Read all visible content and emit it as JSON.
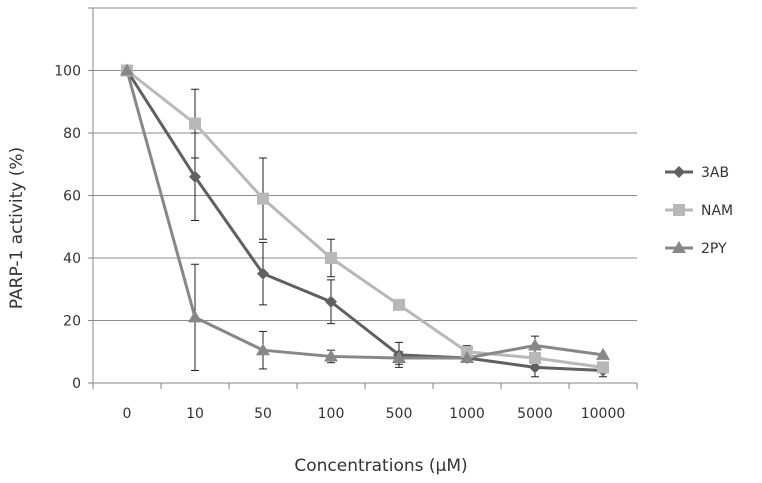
{
  "chart_data": {
    "type": "line",
    "xlabel": "Concentrations (µM)",
    "ylabel": "PARP-1 activity (%)",
    "categories": [
      "0",
      "10",
      "50",
      "100",
      "500",
      "1000",
      "5000",
      "10000"
    ],
    "ylim": [
      0,
      120
    ],
    "yticks": [
      "0",
      "20",
      "40",
      "60",
      "80",
      "100"
    ],
    "grid": "horizontal",
    "legend_position": "right",
    "series": [
      {
        "name": "3AB",
        "color": "#606060",
        "marker": "diamond",
        "values": [
          100,
          66,
          35,
          26,
          9,
          8,
          5,
          4
        ],
        "errors": [
          0,
          14,
          10,
          7,
          4,
          0,
          3,
          2
        ]
      },
      {
        "name": "NAM",
        "color": "#b8b8b8",
        "marker": "square",
        "values": [
          100,
          83,
          59,
          40,
          25,
          10,
          8,
          5
        ],
        "errors": [
          0,
          11,
          13,
          6,
          0,
          2,
          0,
          0
        ]
      },
      {
        "name": "2PY",
        "color": "#878787",
        "marker": "triangle",
        "values": [
          100,
          21,
          10.5,
          8.5,
          8,
          8,
          12,
          9
        ],
        "errors": [
          0,
          17,
          6,
          2,
          2,
          0,
          3,
          0
        ]
      }
    ]
  }
}
